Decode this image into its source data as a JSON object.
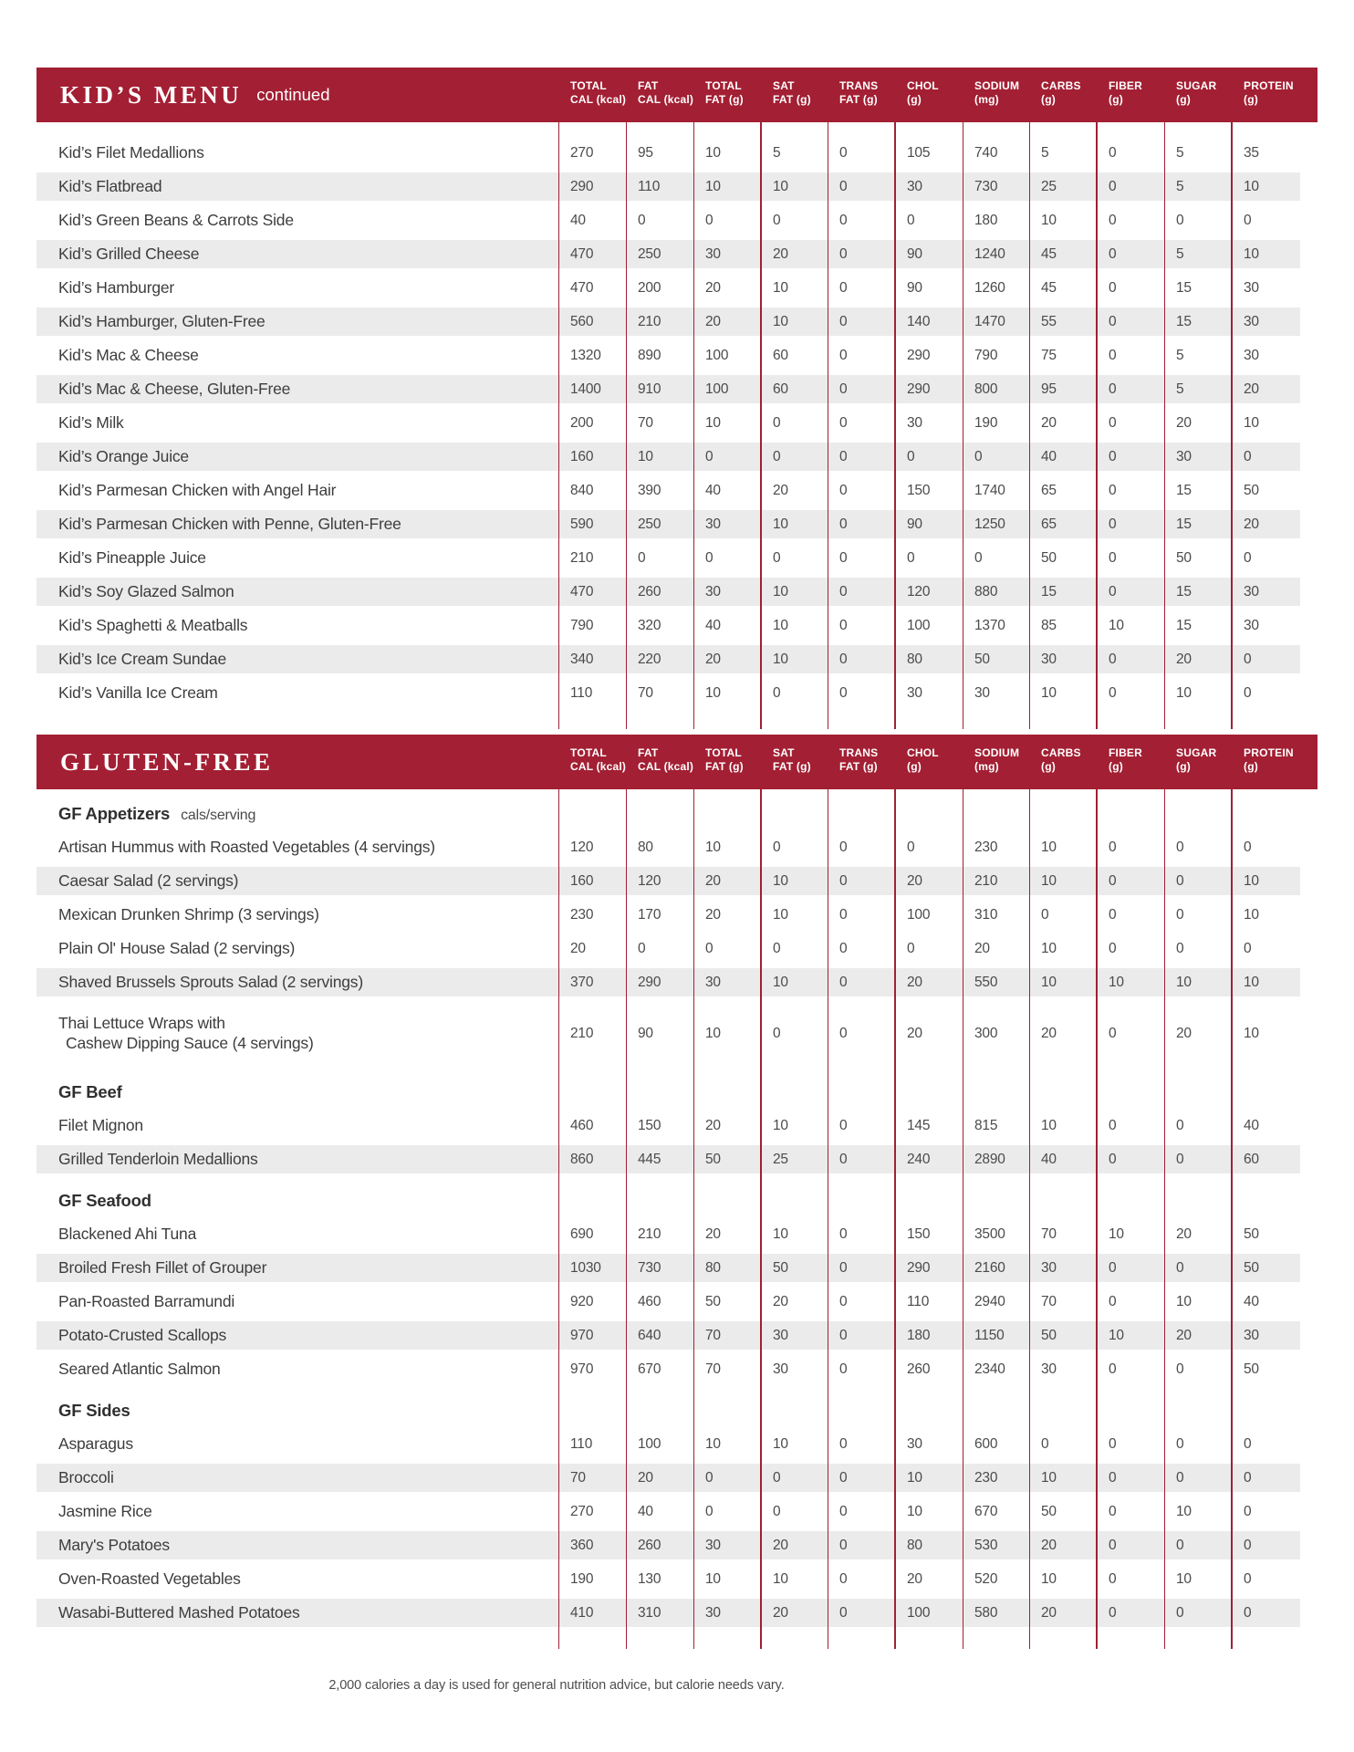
{
  "footer": "2,000 calories a day is used for general nutrition advice, but calorie needs vary.",
  "colors": {
    "header_red": "#A31F33",
    "stripe_gray": "#EBEBEB"
  },
  "columns": [
    {
      "line1": "TOTAL",
      "line2": "CAL (kcal)"
    },
    {
      "line1": "FAT",
      "line2": "CAL (kcal)"
    },
    {
      "line1": "TOTAL",
      "line2": "FAT (g)"
    },
    {
      "line1": "SAT",
      "line2": "FAT (g)"
    },
    {
      "line1": "TRANS",
      "line2": "FAT (g)"
    },
    {
      "line1": "CHOL",
      "line2": "(g)"
    },
    {
      "line1": "SODIUM",
      "line2": "(mg)"
    },
    {
      "line1": "CARBS",
      "line2": "(g)"
    },
    {
      "line1": "FIBER",
      "line2": "(g)"
    },
    {
      "line1": "SUGAR",
      "line2": "(g)"
    },
    {
      "line1": "PROTEIN",
      "line2": "(g)"
    }
  ],
  "tables": [
    {
      "title": "KID’S MENU",
      "title_note": "continued",
      "rows": [
        {
          "name": "Kid’s Filet Medallions",
          "values": [
            "270",
            "95",
            "10",
            "5",
            "0",
            "105",
            "740",
            "5",
            "0",
            "5",
            "35"
          ],
          "shade": false
        },
        {
          "name": "Kid’s Flatbread",
          "values": [
            "290",
            "110",
            "10",
            "10",
            "0",
            "30",
            "730",
            "25",
            "0",
            "5",
            "10"
          ],
          "shade": true
        },
        {
          "name": "Kid’s Green Beans & Carrots Side",
          "values": [
            "40",
            "0",
            "0",
            "0",
            "0",
            "0",
            "180",
            "10",
            "0",
            "0",
            "0"
          ],
          "shade": false
        },
        {
          "name": "Kid’s Grilled Cheese",
          "values": [
            "470",
            "250",
            "30",
            "20",
            "0",
            "90",
            "1240",
            "45",
            "0",
            "5",
            "10"
          ],
          "shade": true
        },
        {
          "name": "Kid’s Hamburger",
          "values": [
            "470",
            "200",
            "20",
            "10",
            "0",
            "90",
            "1260",
            "45",
            "0",
            "15",
            "30"
          ],
          "shade": false
        },
        {
          "name": "Kid’s Hamburger, Gluten-Free",
          "values": [
            "560",
            "210",
            "20",
            "10",
            "0",
            "140",
            "1470",
            "55",
            "0",
            "15",
            "30"
          ],
          "shade": true
        },
        {
          "name": "Kid’s Mac & Cheese",
          "values": [
            "1320",
            "890",
            "100",
            "60",
            "0",
            "290",
            "790",
            "75",
            "0",
            "5",
            "30"
          ],
          "shade": false
        },
        {
          "name": "Kid’s Mac & Cheese, Gluten-Free",
          "values": [
            "1400",
            "910",
            "100",
            "60",
            "0",
            "290",
            "800",
            "95",
            "0",
            "5",
            "20"
          ],
          "shade": true
        },
        {
          "name": "Kid’s Milk",
          "values": [
            "200",
            "70",
            "10",
            "0",
            "0",
            "30",
            "190",
            "20",
            "0",
            "20",
            "10"
          ],
          "shade": false
        },
        {
          "name": "Kid’s Orange Juice",
          "values": [
            "160",
            "10",
            "0",
            "0",
            "0",
            "0",
            "0",
            "40",
            "0",
            "30",
            "0"
          ],
          "shade": true
        },
        {
          "name": "Kid’s Parmesan Chicken with Angel Hair",
          "values": [
            "840",
            "390",
            "40",
            "20",
            "0",
            "150",
            "1740",
            "65",
            "0",
            "15",
            "50"
          ],
          "shade": false
        },
        {
          "name": "Kid’s Parmesan Chicken with Penne, Gluten-Free",
          "values": [
            "590",
            "250",
            "30",
            "10",
            "0",
            "90",
            "1250",
            "65",
            "0",
            "15",
            "20"
          ],
          "shade": true
        },
        {
          "name": "Kid’s Pineapple Juice",
          "values": [
            "210",
            "0",
            "0",
            "0",
            "0",
            "0",
            "0",
            "50",
            "0",
            "50",
            "0"
          ],
          "shade": false
        },
        {
          "name": "Kid’s Soy Glazed Salmon",
          "values": [
            "470",
            "260",
            "30",
            "10",
            "0",
            "120",
            "880",
            "15",
            "0",
            "15",
            "30"
          ],
          "shade": true
        },
        {
          "name": "Kid’s Spaghetti & Meatballs",
          "values": [
            "790",
            "320",
            "40",
            "10",
            "0",
            "100",
            "1370",
            "85",
            "10",
            "15",
            "30"
          ],
          "shade": false
        },
        {
          "name": "Kid’s Ice Cream Sundae",
          "values": [
            "340",
            "220",
            "20",
            "10",
            "0",
            "80",
            "50",
            "30",
            "0",
            "20",
            "0"
          ],
          "shade": true
        },
        {
          "name": "Kid’s Vanilla Ice Cream",
          "values": [
            "110",
            "70",
            "10",
            "0",
            "0",
            "30",
            "30",
            "10",
            "0",
            "10",
            "0"
          ],
          "shade": false
        }
      ]
    },
    {
      "title": "GLUTEN-FREE",
      "title_note": "",
      "rows": [
        {
          "section": "GF Appetizers",
          "note": "cals/serving"
        },
        {
          "name": "Artisan Hummus with Roasted Vegetables (4 servings)",
          "values": [
            "120",
            "80",
            "10",
            "0",
            "0",
            "0",
            "230",
            "10",
            "0",
            "0",
            "0"
          ],
          "shade": false
        },
        {
          "name": "Caesar Salad (2 servings)",
          "values": [
            "160",
            "120",
            "20",
            "10",
            "0",
            "20",
            "210",
            "10",
            "0",
            "0",
            "10"
          ],
          "shade": true
        },
        {
          "name": "Mexican Drunken Shrimp (3 servings)",
          "values": [
            "230",
            "170",
            "20",
            "10",
            "0",
            "100",
            "310",
            "0",
            "0",
            "0",
            "10"
          ],
          "shade": false
        },
        {
          "name": "Plain Ol' House Salad (2 servings)",
          "values": [
            "20",
            "0",
            "0",
            "0",
            "0",
            "0",
            "20",
            "10",
            "0",
            "0",
            "0"
          ],
          "shade": false
        },
        {
          "name": "Shaved Brussels Sprouts Salad (2 servings)",
          "values": [
            "370",
            "290",
            "30",
            "10",
            "0",
            "20",
            "550",
            "10",
            "10",
            "10",
            "10"
          ],
          "shade": true
        },
        {
          "name": "Thai Lettuce Wraps with",
          "name2": "Cashew Dipping Sauce (4 servings)",
          "tall": true,
          "values": [
            "210",
            "90",
            "10",
            "0",
            "0",
            "20",
            "300",
            "20",
            "0",
            "20",
            "10"
          ],
          "shade": false
        },
        {
          "section": "GF Beef",
          "note": ""
        },
        {
          "name": "Filet Mignon",
          "values": [
            "460",
            "150",
            "20",
            "10",
            "0",
            "145",
            "815",
            "10",
            "0",
            "0",
            "40"
          ],
          "shade": false
        },
        {
          "name": "Grilled Tenderloin Medallions",
          "values": [
            "860",
            "445",
            "50",
            "25",
            "0",
            "240",
            "2890",
            "40",
            "0",
            "0",
            "60"
          ],
          "shade": true
        },
        {
          "section": "GF Seafood",
          "note": ""
        },
        {
          "name": "Blackened Ahi Tuna",
          "values": [
            "690",
            "210",
            "20",
            "10",
            "0",
            "150",
            "3500",
            "70",
            "10",
            "20",
            "50"
          ],
          "shade": false
        },
        {
          "name": "Broiled Fresh Fillet of Grouper",
          "values": [
            "1030",
            "730",
            "80",
            "50",
            "0",
            "290",
            "2160",
            "30",
            "0",
            "0",
            "50"
          ],
          "shade": true
        },
        {
          "name": "Pan-Roasted Barramundi",
          "values": [
            "920",
            "460",
            "50",
            "20",
            "0",
            "110",
            "2940",
            "70",
            "0",
            "10",
            "40"
          ],
          "shade": false
        },
        {
          "name": "Potato-Crusted Scallops",
          "values": [
            "970",
            "640",
            "70",
            "30",
            "0",
            "180",
            "1150",
            "50",
            "10",
            "20",
            "30"
          ],
          "shade": true
        },
        {
          "name": "Seared Atlantic Salmon",
          "values": [
            "970",
            "670",
            "70",
            "30",
            "0",
            "260",
            "2340",
            "30",
            "0",
            "0",
            "50"
          ],
          "shade": false
        },
        {
          "section": "GF Sides",
          "note": ""
        },
        {
          "name": "Asparagus",
          "values": [
            "110",
            "100",
            "10",
            "10",
            "0",
            "30",
            "600",
            "0",
            "0",
            "0",
            "0"
          ],
          "shade": false
        },
        {
          "name": "Broccoli",
          "values": [
            "70",
            "20",
            "0",
            "0",
            "0",
            "10",
            "230",
            "10",
            "0",
            "0",
            "0"
          ],
          "shade": true
        },
        {
          "name": "Jasmine Rice",
          "values": [
            "270",
            "40",
            "0",
            "0",
            "0",
            "10",
            "670",
            "50",
            "0",
            "10",
            "0"
          ],
          "shade": false
        },
        {
          "name": "Mary's Potatoes",
          "values": [
            "360",
            "260",
            "30",
            "20",
            "0",
            "80",
            "530",
            "20",
            "0",
            "0",
            "0"
          ],
          "shade": true
        },
        {
          "name": "Oven-Roasted Vegetables",
          "values": [
            "190",
            "130",
            "10",
            "10",
            "0",
            "20",
            "520",
            "10",
            "0",
            "10",
            "0"
          ],
          "shade": false
        },
        {
          "name": "Wasabi-Buttered Mashed Potatoes",
          "values": [
            "410",
            "310",
            "30",
            "20",
            "0",
            "100",
            "580",
            "20",
            "0",
            "0",
            "0"
          ],
          "shade": true
        }
      ]
    }
  ]
}
